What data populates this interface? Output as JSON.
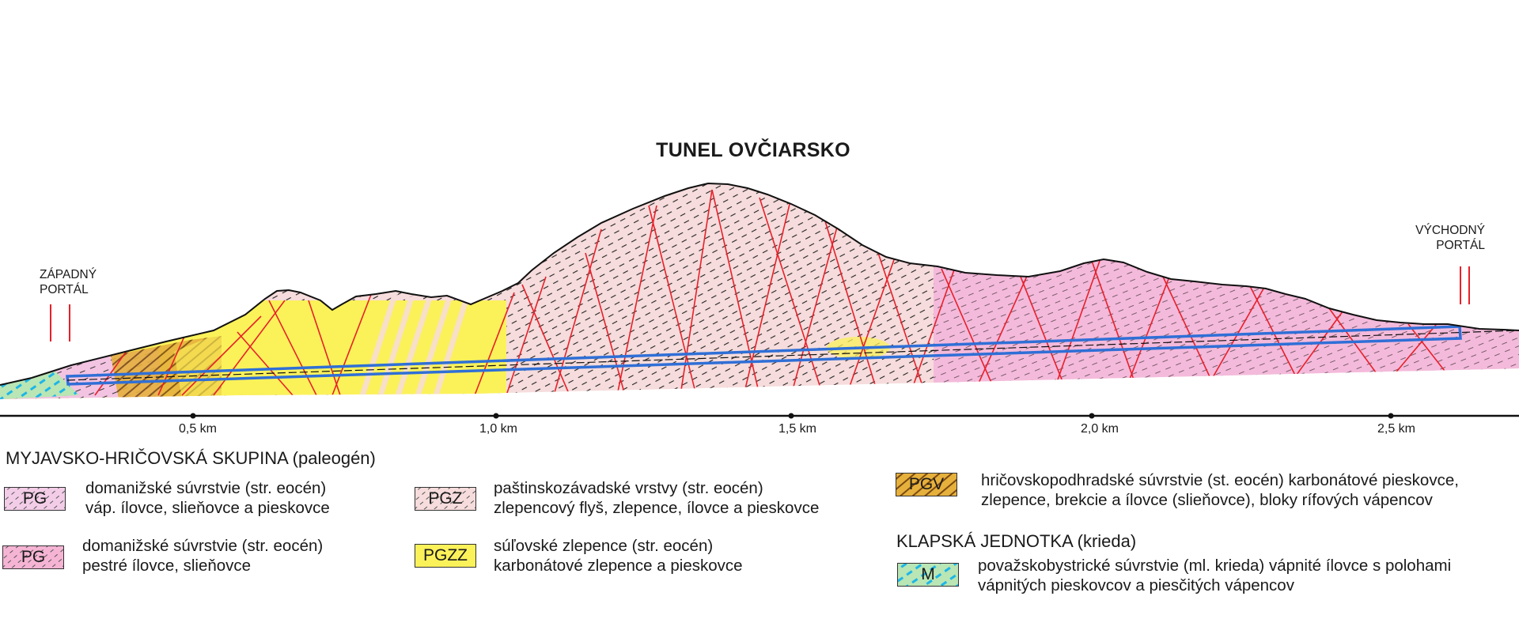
{
  "title": "TUNEL OVČIARSKO",
  "portals": {
    "west": [
      "ZÁPADNÝ",
      "PORTÁL"
    ],
    "east": [
      "VÝCHODNÝ",
      "PORTÁL"
    ]
  },
  "axis": {
    "unit": "km",
    "ticks": [
      "0,5 km",
      "1,0 km",
      "1,5 km",
      "2,0 km",
      "2,5 km"
    ]
  },
  "legend": {
    "group1": "MYJAVSKO-HRIČOVSKÁ SKUPINA (paleogén)",
    "group2": "KLAPSKÁ JEDNOTKA (krieda)",
    "items": [
      {
        "code": "PG",
        "line1": "domanižské súvrstvie (str. eocén)",
        "line2": "váp. ílovce, slieňovce a pieskovce",
        "color": "#f3cde8"
      },
      {
        "code": "PG",
        "line1": "domanižské súvrstvie (str. eocén)",
        "line2": "pestré ílovce, slieňovce",
        "color": "#f6b4d4"
      },
      {
        "code": "PGZ",
        "line1": "paštinskozávadské vrstvy (str. eocén)",
        "line2": "zlepencový flyš, zlepence, ílovce a pieskovce",
        "color": "#f6dcdc"
      },
      {
        "code": "PGZZ",
        "line1": "súľovské zlepence (str. eocén)",
        "line2": "karbonátové zlepence a pieskovce",
        "color": "#fbf25a"
      },
      {
        "code": "PGV",
        "line1": "hričovskopodhradské súvrstvie (st. eocén) karbonátové pieskovce,",
        "line2": "zlepence, brekcie a ílovce (slieňovce), bloky rífových vápencov",
        "color": "#e6b03c"
      },
      {
        "code": "M",
        "line1": "považskobystrické súvrstvie (ml. krieda) vápnité ílovce s polohami",
        "line2": "vápnitých pieskovcov a piesčitých vápencov",
        "color": "#b9e6b4"
      }
    ]
  },
  "colors": {
    "fault": "#e8202a",
    "tunnel": "#2f6fd6",
    "ground_line": "#111111"
  }
}
